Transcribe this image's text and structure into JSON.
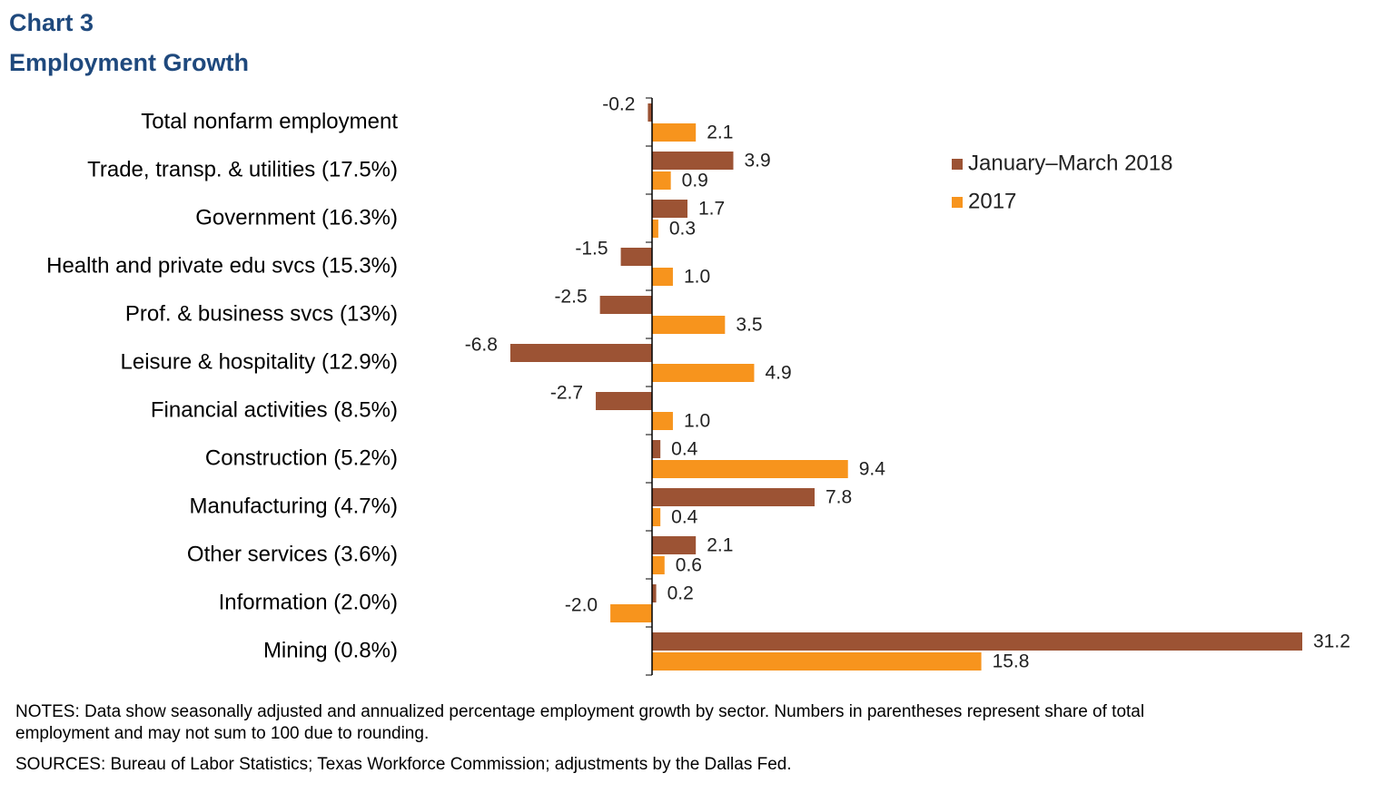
{
  "chart_data": {
    "type": "bar",
    "orientation": "horizontal",
    "title": "Chart 3",
    "subtitle": "Employment Growth",
    "categories": [
      "Total nonfarm employment",
      "Trade, transp. & utilities (17.5%)",
      "Government (16.3%)",
      "Health and private edu svcs (15.3%)",
      "Prof. & business svcs (13%)",
      "Leisure & hospitality (12.9%)",
      "Financial activities (8.5%)",
      "Construction (5.2%)",
      "Manufacturing (4.7%)",
      "Other services (3.6%)",
      "Information (2.0%)",
      "Mining (0.8%)"
    ],
    "series": [
      {
        "name": "January–March 2018",
        "color": "#9c5334",
        "values": [
          -0.2,
          3.9,
          1.7,
          -1.5,
          -2.5,
          -6.8,
          -2.7,
          0.4,
          7.8,
          2.1,
          0.2,
          31.2
        ],
        "value_labels": [
          "-0.2",
          "3.9",
          "1.7",
          "-1.5",
          "-2.5",
          "-6.8",
          "-2.7",
          "0.4",
          "7.8",
          "2.1",
          "0.2",
          "31.2"
        ]
      },
      {
        "name": "2017",
        "color": "#f7941d",
        "values": [
          2.1,
          0.9,
          0.3,
          1.0,
          3.5,
          4.9,
          1.0,
          9.4,
          0.4,
          0.6,
          -2.0,
          15.8
        ],
        "value_labels": [
          "2.1",
          "0.9",
          "0.3",
          "1.0",
          "3.5",
          "4.9",
          "1.0",
          "9.4",
          "0.4",
          "0.6",
          "-2.0",
          "15.8"
        ]
      }
    ],
    "notes": [
      "NOTES: Data show seasonally adjusted and annualized percentage employment growth by sector. Numbers in parentheses represent share of total",
      "employment and may not sum to 100 due to rounding."
    ],
    "sources": "SOURCES: Bureau of Labor Statistics; Texas Workforce Commission; adjustments by the Dallas Fed."
  }
}
